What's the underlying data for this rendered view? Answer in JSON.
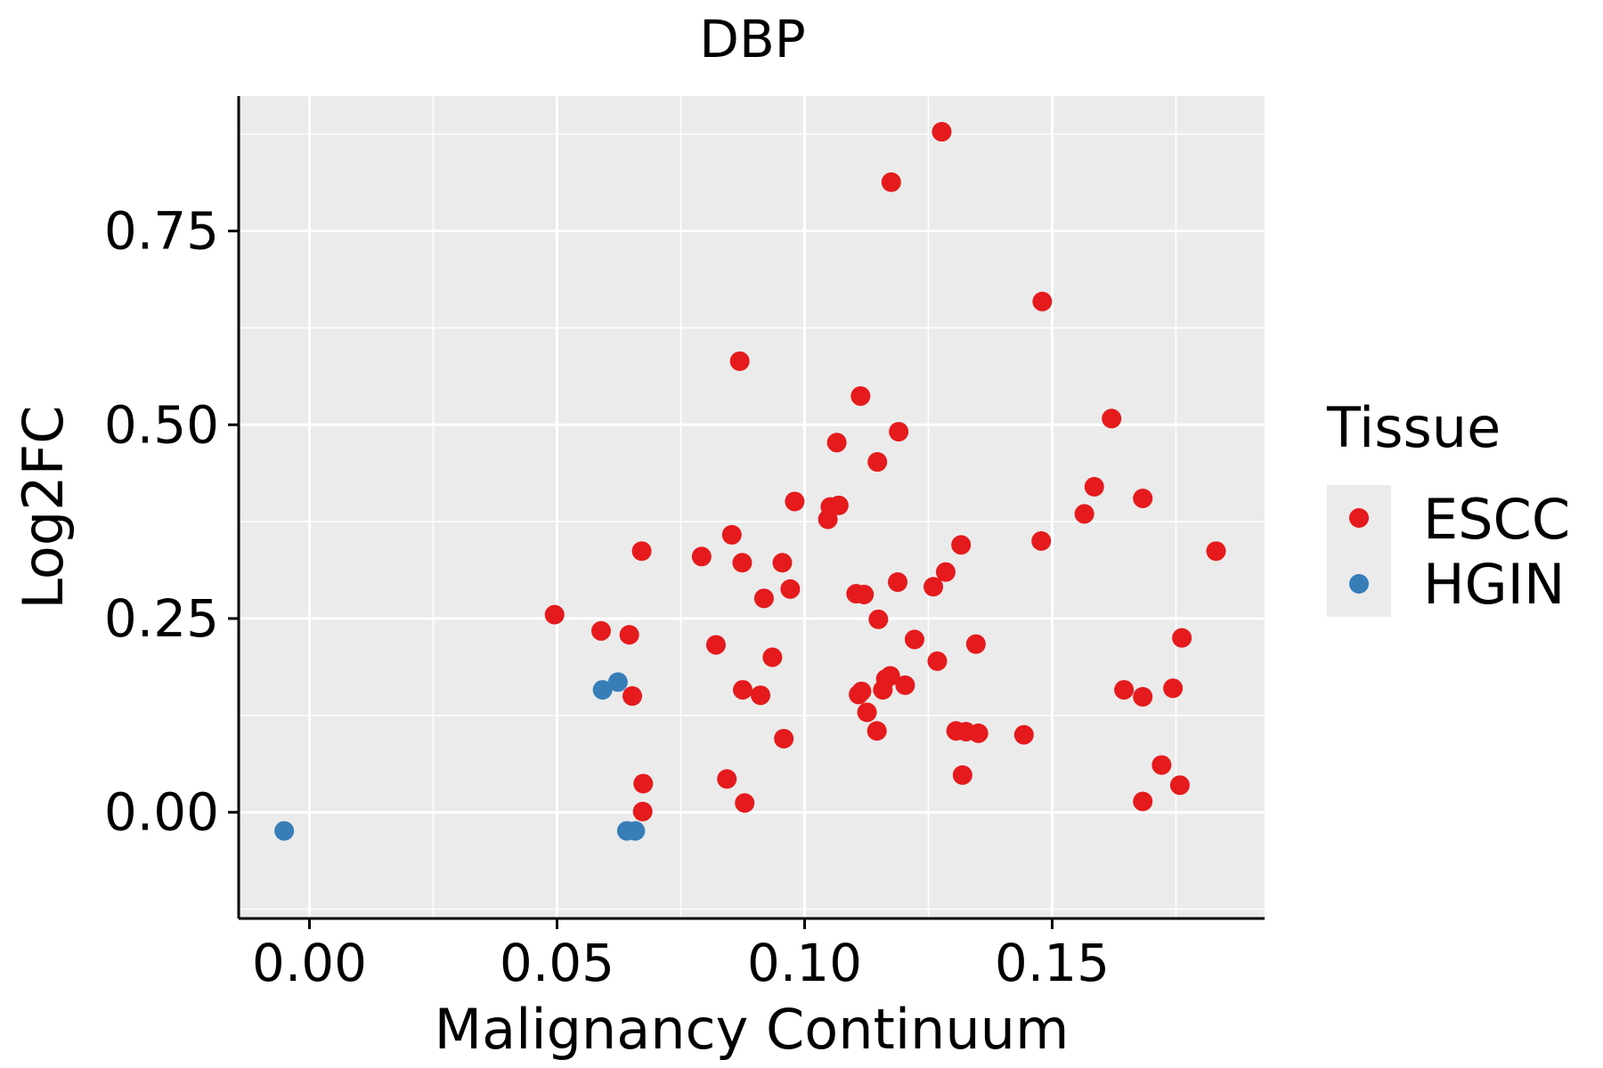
{
  "chart_data": {
    "type": "scatter",
    "title": "DBP",
    "xlabel": "Malignancy Continuum",
    "ylabel": "Log2FC",
    "xlim": [
      -0.0143,
      0.1929
    ],
    "ylim": [
      -0.137,
      0.924
    ],
    "xticks": [
      0.0,
      0.05,
      0.1,
      0.15
    ],
    "xtick_labels": [
      "0.00",
      "0.05",
      "0.10",
      "0.15"
    ],
    "yticks": [
      0.0,
      0.25,
      0.5,
      0.75
    ],
    "ytick_labels": [
      "0.00",
      "0.25",
      "0.50",
      "0.75"
    ],
    "grid": true,
    "legend": {
      "title": "Tissue",
      "position": "right"
    },
    "series": [
      {
        "name": "ESCC",
        "color": "#E41A1C",
        "points": [
          [
            0.1277,
            0.878
          ],
          [
            0.1175,
            0.813
          ],
          [
            0.148,
            0.659
          ],
          [
            0.0869,
            0.582
          ],
          [
            0.1113,
            0.537
          ],
          [
            0.162,
            0.508
          ],
          [
            0.119,
            0.491
          ],
          [
            0.1065,
            0.477
          ],
          [
            0.1147,
            0.452
          ],
          [
            0.1585,
            0.42
          ],
          [
            0.1683,
            0.405
          ],
          [
            0.098,
            0.401
          ],
          [
            0.1069,
            0.396
          ],
          [
            0.1052,
            0.394
          ],
          [
            0.1565,
            0.385
          ],
          [
            0.1047,
            0.378
          ],
          [
            0.0853,
            0.358
          ],
          [
            0.1478,
            0.35
          ],
          [
            0.1316,
            0.345
          ],
          [
            0.0671,
            0.337
          ],
          [
            0.1831,
            0.337
          ],
          [
            0.0792,
            0.33
          ],
          [
            0.0874,
            0.322
          ],
          [
            0.0955,
            0.322
          ],
          [
            0.1285,
            0.31
          ],
          [
            0.1188,
            0.297
          ],
          [
            0.126,
            0.291
          ],
          [
            0.0971,
            0.288
          ],
          [
            0.1104,
            0.282
          ],
          [
            0.112,
            0.281
          ],
          [
            0.0918,
            0.276
          ],
          [
            0.0495,
            0.255
          ],
          [
            0.1149,
            0.249
          ],
          [
            0.0589,
            0.234
          ],
          [
            0.0646,
            0.229
          ],
          [
            0.1762,
            0.225
          ],
          [
            0.1222,
            0.223
          ],
          [
            0.1346,
            0.217
          ],
          [
            0.0821,
            0.216
          ],
          [
            0.0935,
            0.2
          ],
          [
            0.1268,
            0.195
          ],
          [
            0.1173,
            0.176
          ],
          [
            0.1164,
            0.172
          ],
          [
            0.1203,
            0.164
          ],
          [
            0.1158,
            0.158
          ],
          [
            0.1645,
            0.158
          ],
          [
            0.0875,
            0.158
          ],
          [
            0.1744,
            0.16
          ],
          [
            0.1115,
            0.156
          ],
          [
            0.1109,
            0.152
          ],
          [
            0.0911,
            0.151
          ],
          [
            0.0652,
            0.15
          ],
          [
            0.1683,
            0.149
          ],
          [
            0.1126,
            0.129
          ],
          [
            0.1306,
            0.105
          ],
          [
            0.1326,
            0.104
          ],
          [
            0.1146,
            0.105
          ],
          [
            0.1351,
            0.102
          ],
          [
            0.1443,
            0.1
          ],
          [
            0.0958,
            0.095
          ],
          [
            0.1721,
            0.061
          ],
          [
            0.1319,
            0.048
          ],
          [
            0.0843,
            0.043
          ],
          [
            0.0674,
            0.037
          ],
          [
            0.1758,
            0.035
          ],
          [
            0.0879,
            0.012
          ],
          [
            0.1683,
            0.014
          ],
          [
            0.0673,
            0.001
          ]
        ]
      },
      {
        "name": "HGIN",
        "color": "#377EB8",
        "points": [
          [
            0.0623,
            0.168
          ],
          [
            0.0592,
            0.158
          ],
          [
            -0.0051,
            -0.024
          ],
          [
            0.0641,
            -0.024
          ],
          [
            0.0658,
            -0.024
          ]
        ]
      }
    ]
  }
}
